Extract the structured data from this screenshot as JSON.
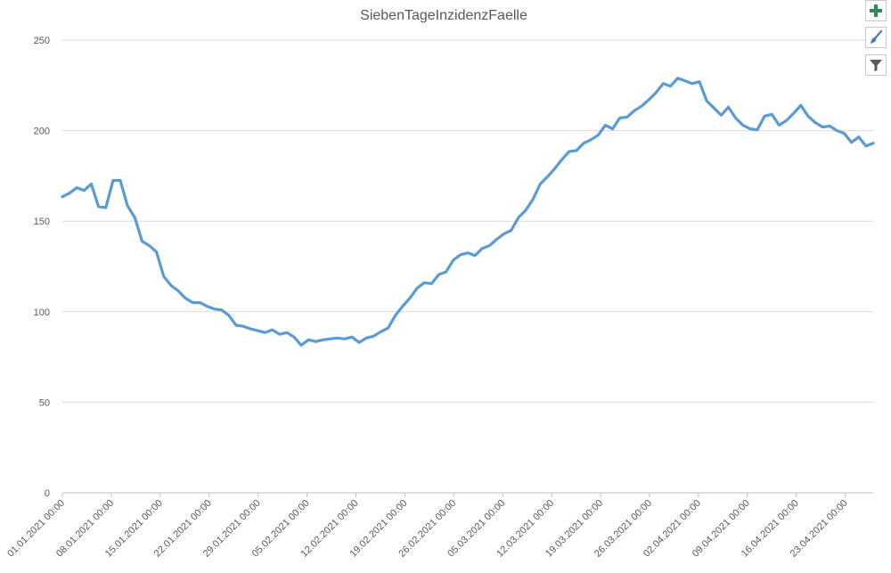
{
  "chart_data": {
    "type": "line",
    "title": "SiebenTageInzidenzFaelle",
    "ylim": [
      0,
      250
    ],
    "yticks": [
      0,
      50,
      100,
      150,
      200,
      250
    ],
    "grid": true,
    "legend": "none",
    "x_start_date": "2021-01-01",
    "x_end_date": "2021-04-27",
    "xtick_labels": [
      "01.01.2021 00:00",
      "08.01.2021 00:00",
      "15.01.2021 00:00",
      "22.01.2021 00:00",
      "29.01.2021 00:00",
      "05.02.2021 00:00",
      "12.02.2021 00:00",
      "19.02.2021 00:00",
      "26.02.2021 00:00",
      "05.03.2021 00:00",
      "12.03.2021 00:00",
      "19.03.2021 00:00",
      "26.03.2021 00:00",
      "02.04.2021 00:00",
      "09.04.2021 00:00",
      "16.04.2021 00:00",
      "23.04.2021 00:00"
    ],
    "series": [
      {
        "color": "#5b9bd5",
        "values": [
          163.5,
          165.5,
          168.5,
          167,
          170.5,
          158,
          157.5,
          172.5,
          172.5,
          158.5,
          152,
          139,
          136.5,
          133,
          119.5,
          114.5,
          111.5,
          107.5,
          105,
          105,
          103,
          101.5,
          101,
          98,
          92.5,
          92,
          90.5,
          89.5,
          88.5,
          90,
          87.5,
          88.5,
          86,
          81.5,
          84.5,
          83.5,
          84.5,
          85,
          85.5,
          85,
          86,
          83,
          85.5,
          86.5,
          89,
          91,
          98,
          103,
          107.5,
          113,
          116,
          115.5,
          120.5,
          122,
          128.5,
          131.5,
          132.5,
          131,
          135,
          136.5,
          140,
          143,
          145,
          152,
          156,
          162,
          170.5,
          174.5,
          179,
          184,
          188.5,
          189,
          193,
          195,
          197.5,
          203,
          201,
          207,
          207.5,
          211,
          213.5,
          217,
          221,
          226,
          224.5,
          229,
          227.5,
          226,
          227,
          216.5,
          212.5,
          208.5,
          213,
          207,
          203,
          201,
          200.5,
          208,
          209,
          203,
          205.5,
          209.5,
          214,
          208,
          204.5,
          202,
          202.5,
          200,
          198.5,
          193.5,
          196.5,
          191.5,
          193
        ]
      }
    ]
  },
  "toolbar": [
    {
      "name": "chart-elements",
      "icon": "plus-icon"
    },
    {
      "name": "chart-styles",
      "icon": "paintbrush-icon"
    },
    {
      "name": "chart-filters",
      "icon": "filter-icon"
    }
  ]
}
